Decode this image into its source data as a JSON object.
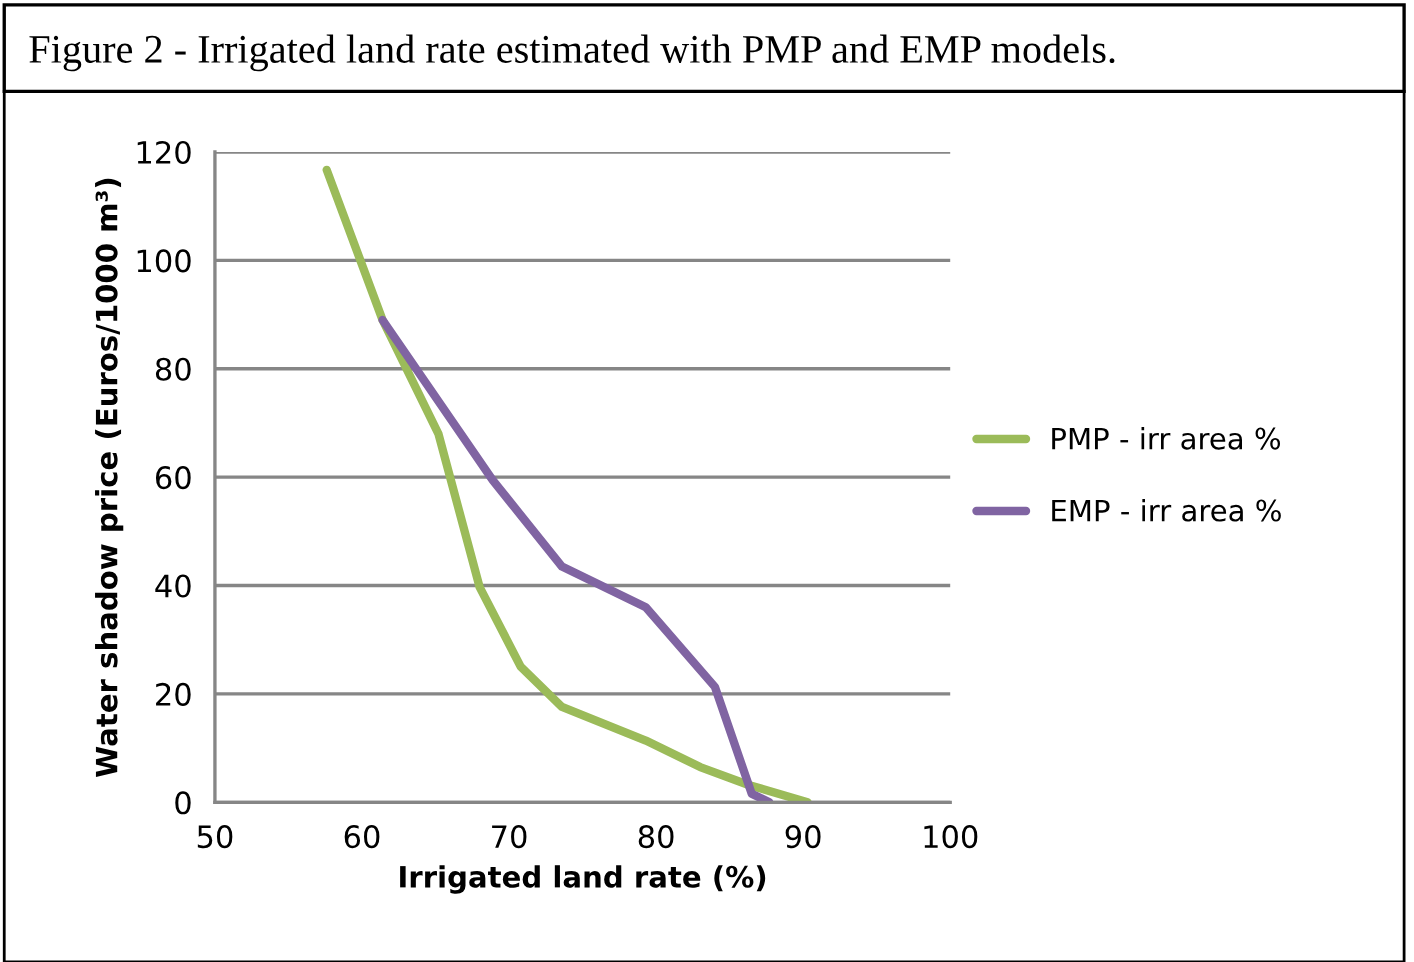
{
  "chart_data": {
    "type": "line",
    "title": "Figure 2 - Irrigated land rate estimated with PMP and EMP models.",
    "xlabel": "Irrigated land rate (%)",
    "ylabel": "Water shadow price (Euros/1000 m³)",
    "xlim": [
      50,
      100
    ],
    "xticks": [
      50,
      60,
      70,
      80,
      90,
      100
    ],
    "ylim": [
      0,
      120
    ],
    "yticks": [
      0,
      20,
      40,
      60,
      80,
      100,
      120
    ],
    "grid": "y",
    "legend": "right",
    "marker": "none",
    "line_style": "solid",
    "series": [
      {
        "name": "PMP - irr area %",
        "color": "#9bbb59",
        "x": [
          57.6,
          61.4,
          65.2,
          68.0,
          70.8,
          73.6,
          79.3,
          83.0,
          86.3,
          90.3
        ],
        "values": [
          116.7,
          89,
          68,
          39.7,
          25,
          17.6,
          11.4,
          6.5,
          3.2,
          0
        ]
      },
      {
        "name": "EMP - irr area %",
        "color": "#8064a2",
        "x": [
          61.4,
          68.9,
          73.6,
          79.3,
          84.0,
          86.5,
          87.7
        ],
        "values": [
          89,
          59.4,
          43.5,
          36,
          21.3,
          1.6,
          0
        ]
      }
    ]
  }
}
